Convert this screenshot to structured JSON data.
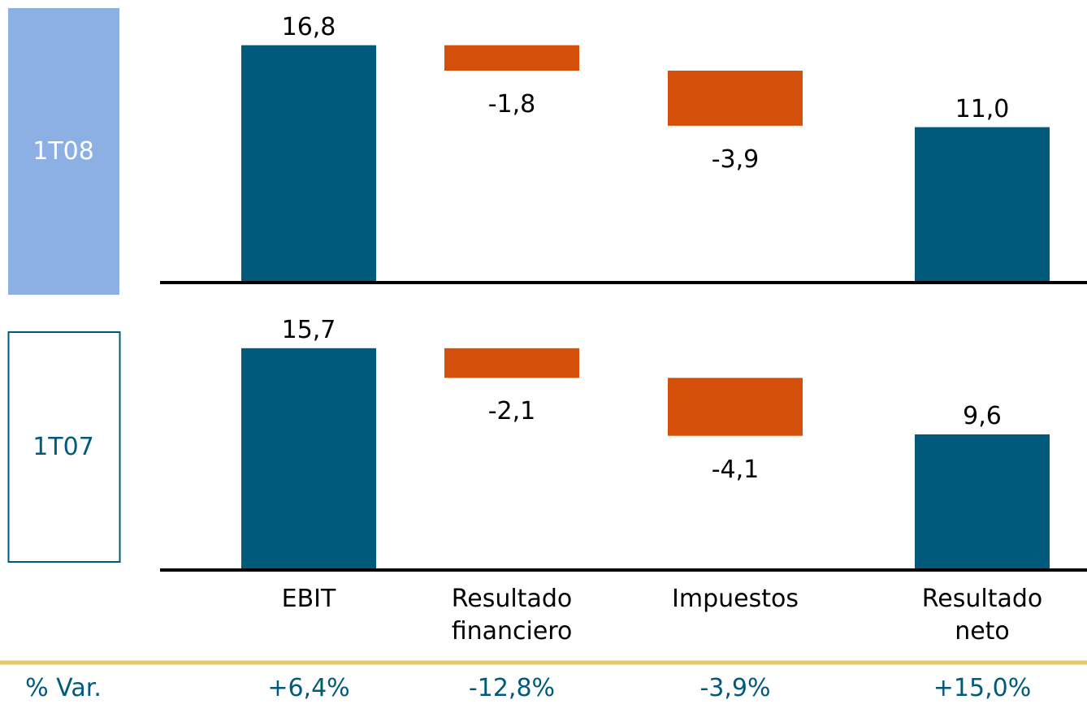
{
  "chart_data": [
    {
      "type": "waterfall",
      "label": "1T08",
      "label_style": "filled",
      "panel_color": "#8db0e4",
      "values": [
        16.8,
        -1.8,
        -3.9,
        11.0
      ],
      "value_labels": [
        "16,8",
        "-1,8",
        "-3,9",
        "11,0"
      ],
      "is_total": [
        false,
        false,
        false,
        true
      ],
      "positive_color": "#005a7c",
      "negative_color": "#d4500a"
    },
    {
      "type": "waterfall",
      "label": "1T07",
      "label_style": "outline",
      "panel_color": "#005a7c",
      "categories": [
        "EBIT",
        "Resultado\nfinanciero",
        "Impuestos",
        "Resultado neto"
      ],
      "values": [
        15.7,
        -2.1,
        -4.1,
        9.6
      ],
      "value_labels": [
        "15,7",
        "-2,1",
        "-4,1",
        "9,6"
      ],
      "is_total": [
        false,
        false,
        false,
        true
      ],
      "positive_color": "#005a7c",
      "negative_color": "#d4500a"
    }
  ],
  "variation": {
    "label": "% Var.",
    "values": [
      6.4,
      -12.8,
      -3.9,
      15.0
    ],
    "value_labels": [
      "+6,4%",
      "-12,8%",
      "-3,9%",
      "+15,0%"
    ],
    "rule_color": "#e8c766"
  }
}
